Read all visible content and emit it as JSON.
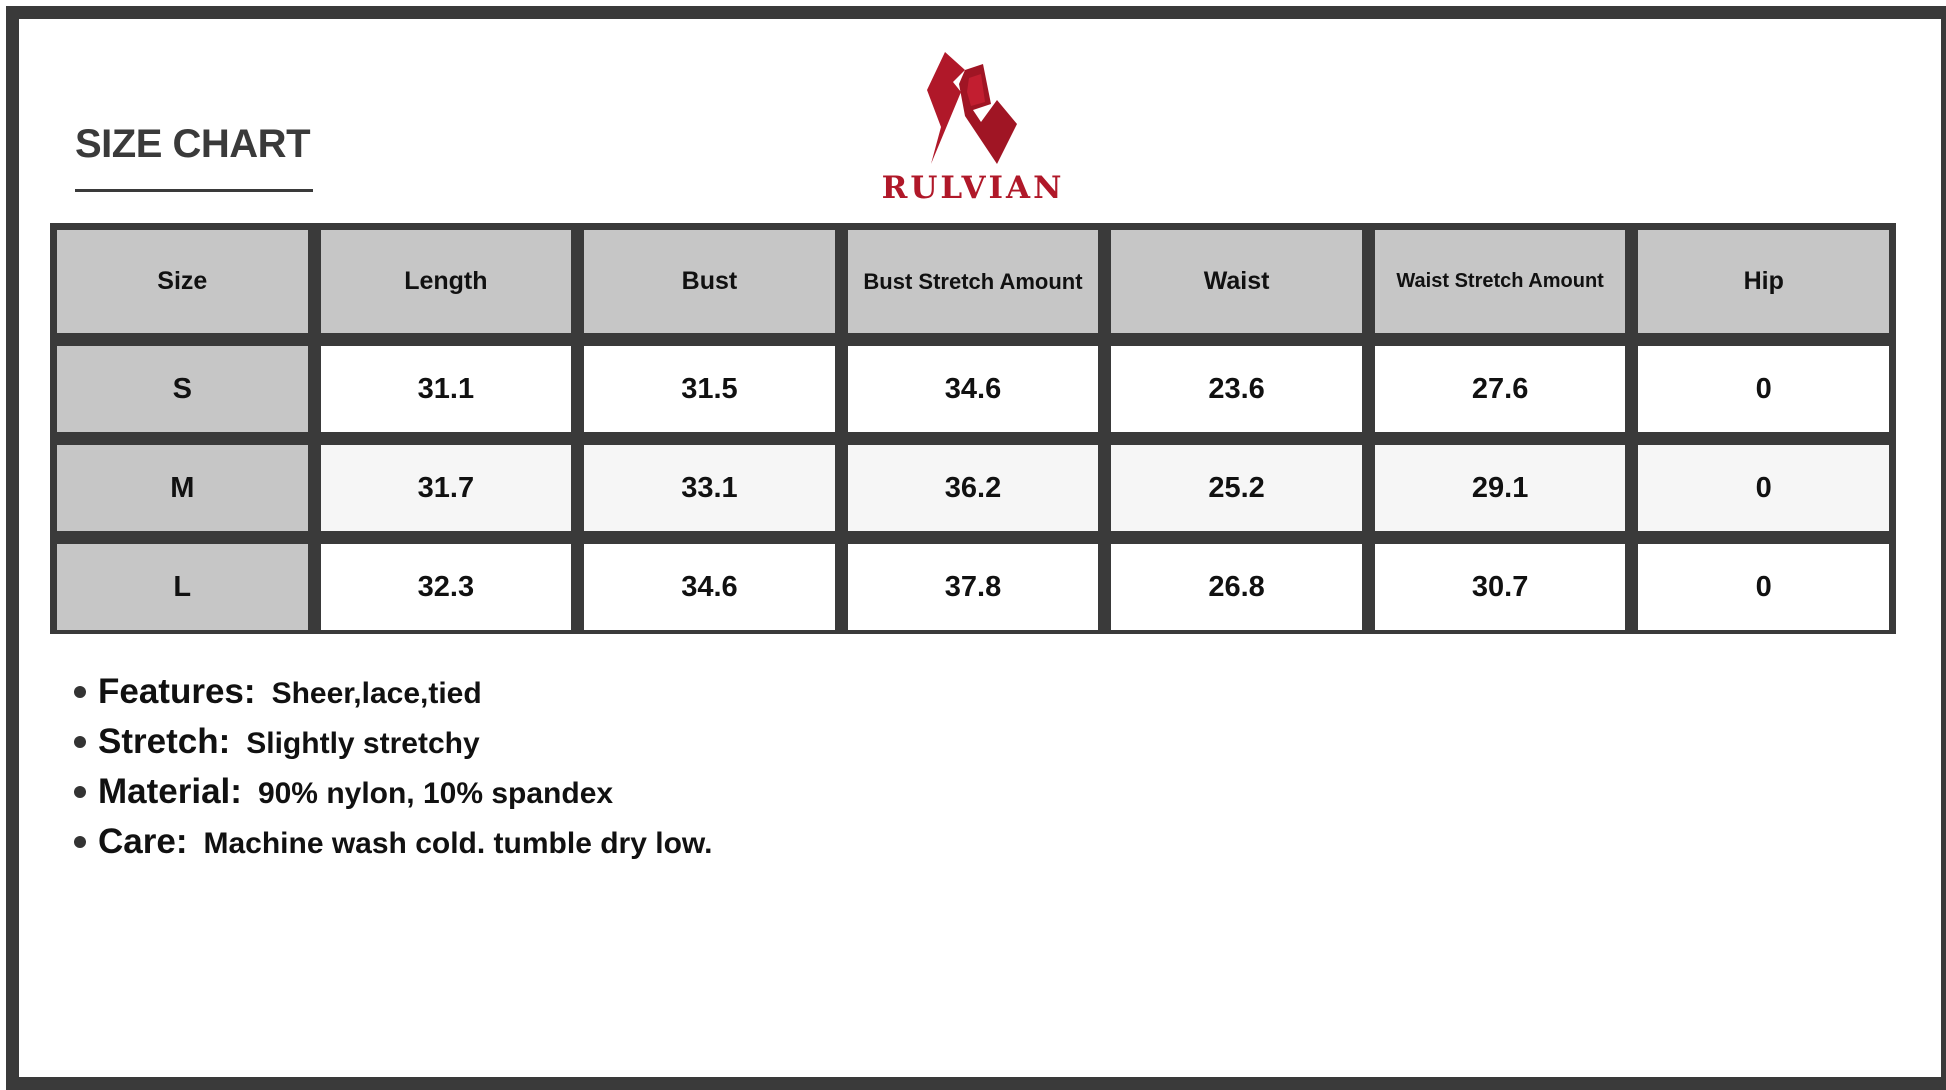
{
  "title": "SIZE CHART",
  "brand": {
    "name": "RULVIAN",
    "color": "#b01829"
  },
  "table": {
    "headers": [
      "Size",
      "Length",
      "Bust",
      "Bust Stretch Amount",
      "Waist",
      "Waist Stretch Amount",
      "Hip"
    ],
    "rows": [
      [
        "S",
        "31.1",
        "31.5",
        "34.6",
        "23.6",
        "27.6",
        "0"
      ],
      [
        "M",
        "31.7",
        "33.1",
        "36.2",
        "25.2",
        "29.1",
        "0"
      ],
      [
        "L",
        "32.3",
        "34.6",
        "37.8",
        "26.8",
        "30.7",
        "0"
      ]
    ]
  },
  "details": [
    {
      "label": "Features:",
      "value": "Sheer,lace,tied"
    },
    {
      "label": "Stretch:",
      "value": "Slightly stretchy"
    },
    {
      "label": "Material:",
      "value": "90% nylon, 10% spandex"
    },
    {
      "label": "Care:",
      "value": "Machine wash cold. tumble dry low."
    }
  ]
}
